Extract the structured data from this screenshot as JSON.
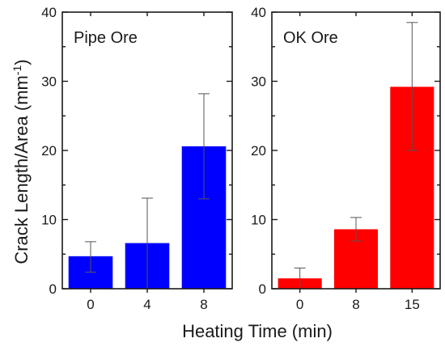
{
  "chart_data": [
    {
      "type": "bar",
      "title": "Pipe Ore",
      "categories": [
        "0",
        "4",
        "8"
      ],
      "values": [
        4.7,
        6.6,
        20.6
      ],
      "error_low": [
        2.4,
        0.0,
        13.0
      ],
      "error_high": [
        6.8,
        13.1,
        28.2
      ],
      "color": "#0000ff",
      "ylim": [
        0,
        40
      ],
      "yticks": [
        0,
        10,
        20,
        30,
        40
      ]
    },
    {
      "type": "bar",
      "title": "OK Ore",
      "categories": [
        "0",
        "8",
        "15"
      ],
      "values": [
        1.5,
        8.6,
        29.2
      ],
      "error_low": [
        0.0,
        6.9,
        20.0
      ],
      "error_high": [
        3.0,
        10.3,
        38.5
      ],
      "color": "#ff0000",
      "ylim": [
        0,
        40
      ],
      "yticks": [
        0,
        10,
        20,
        30,
        40
      ]
    }
  ],
  "xlabel": "Heating Time (min)",
  "ylabel_main": "Crack Length/Area (mm",
  "ylabel_sup": "-1",
  "ylabel_close": ")"
}
